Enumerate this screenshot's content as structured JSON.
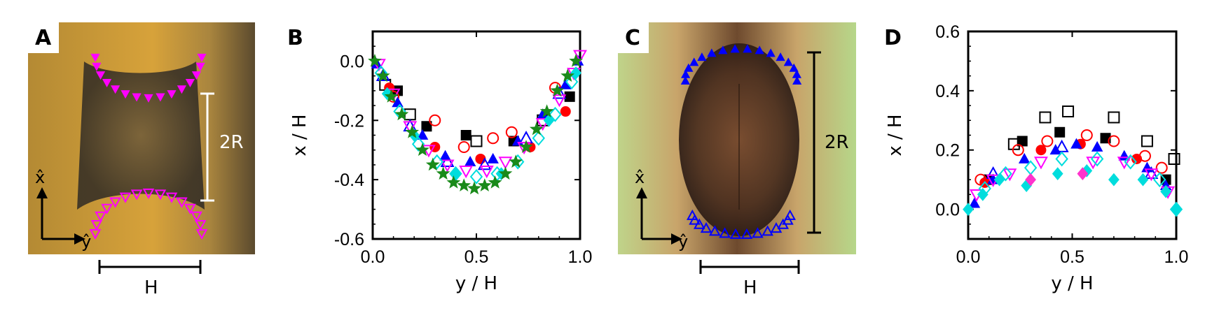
{
  "colors": {
    "magenta": "#ff00ff",
    "blue": "#0000ff",
    "black": "#000000",
    "red": "#ff0000",
    "cyan": "#00dddd",
    "green": "#1a8a1a",
    "pink": "#ff33cc"
  },
  "panel_a": {
    "label": "A",
    "radius_label": "2R",
    "width_label": "H",
    "axis_x_label": "x̂",
    "axis_y_label": "ŷ"
  },
  "panel_c": {
    "label": "C",
    "radius_label": "2R",
    "width_label": "H",
    "axis_x_label": "x̂",
    "axis_y_label": "ŷ"
  },
  "chart_data": [
    {
      "panel": "B",
      "type": "scatter",
      "xlabel": "y / H",
      "ylabel": "x / H",
      "xlim": [
        0,
        1
      ],
      "ylim": [
        -0.6,
        0.1
      ],
      "xticks": [
        "0.0",
        "0.5",
        "1.0"
      ],
      "yticks": [
        "0.0",
        "-0.2",
        "-0.4",
        "-0.6"
      ],
      "series": [
        {
          "marker": "square",
          "fill": "filled",
          "color": "black",
          "x": [
            0.12,
            0.26,
            0.45,
            0.68,
            0.95
          ],
          "y": [
            -0.1,
            -0.22,
            -0.25,
            -0.27,
            -0.12
          ]
        },
        {
          "marker": "square",
          "fill": "open",
          "color": "black",
          "x": [
            0.06,
            0.18,
            0.5,
            0.82
          ],
          "y": [
            -0.08,
            -0.18,
            -0.27,
            -0.2
          ]
        },
        {
          "marker": "circle",
          "fill": "open",
          "color": "red",
          "x": [
            0.1,
            0.3,
            0.44,
            0.58,
            0.67,
            0.88
          ],
          "y": [
            -0.12,
            -0.2,
            -0.29,
            -0.26,
            -0.24,
            -0.09
          ]
        },
        {
          "marker": "circle",
          "fill": "filled",
          "color": "red",
          "x": [
            0.08,
            0.3,
            0.52,
            0.76,
            0.93
          ],
          "y": [
            -0.09,
            -0.29,
            -0.33,
            -0.29,
            -0.17
          ]
        },
        {
          "marker": "triangle-up",
          "fill": "filled",
          "color": "blue",
          "x": [
            0.02,
            0.12,
            0.24,
            0.35,
            0.47,
            0.58,
            0.7,
            0.82,
            0.93,
            0.99
          ],
          "y": [
            -0.01,
            -0.14,
            -0.25,
            -0.32,
            -0.34,
            -0.33,
            -0.27,
            -0.18,
            -0.08,
            0.0
          ]
        },
        {
          "marker": "triangle-up",
          "fill": "open",
          "color": "blue",
          "x": [
            0.05,
            0.18,
            0.36,
            0.54,
            0.74,
            0.9
          ],
          "y": [
            -0.05,
            -0.22,
            -0.34,
            -0.35,
            -0.26,
            -0.11
          ]
        },
        {
          "marker": "triangle-down",
          "fill": "open",
          "color": "magenta",
          "x": [
            0.03,
            0.1,
            0.18,
            0.27,
            0.36,
            0.45,
            0.55,
            0.64,
            0.73,
            0.82,
            0.9,
            0.97,
            1.0
          ],
          "y": [
            -0.01,
            -0.11,
            -0.22,
            -0.3,
            -0.35,
            -0.37,
            -0.37,
            -0.34,
            -0.29,
            -0.21,
            -0.13,
            -0.04,
            0.02
          ]
        },
        {
          "marker": "diamond",
          "fill": "open",
          "color": "cyan",
          "x": [
            0.04,
            0.13,
            0.22,
            0.31,
            0.4,
            0.5,
            0.6,
            0.7,
            0.8,
            0.88,
            0.96
          ],
          "y": [
            -0.04,
            -0.17,
            -0.28,
            -0.34,
            -0.38,
            -0.39,
            -0.38,
            -0.34,
            -0.26,
            -0.18,
            -0.07
          ]
        },
        {
          "marker": "diamond",
          "fill": "filled",
          "color": "cyan",
          "x": [
            0.07,
            0.2,
            0.4,
            0.62,
            0.85,
            0.98
          ],
          "y": [
            -0.11,
            -0.25,
            -0.38,
            -0.38,
            -0.2,
            -0.04
          ]
        },
        {
          "marker": "star",
          "fill": "filled",
          "color": "green",
          "x": [
            0.01,
            0.05,
            0.09,
            0.14,
            0.19,
            0.24,
            0.29,
            0.34,
            0.39,
            0.44,
            0.49,
            0.54,
            0.59,
            0.64,
            0.69,
            0.74,
            0.79,
            0.84,
            0.89,
            0.94,
            0.98
          ],
          "y": [
            0.0,
            -0.05,
            -0.12,
            -0.18,
            -0.24,
            -0.3,
            -0.35,
            -0.38,
            -0.41,
            -0.42,
            -0.43,
            -0.42,
            -0.41,
            -0.38,
            -0.34,
            -0.29,
            -0.23,
            -0.17,
            -0.1,
            -0.05,
            0.0
          ]
        }
      ]
    },
    {
      "panel": "D",
      "type": "scatter",
      "xlabel": "y / H",
      "ylabel": "x / H",
      "xlim": [
        0,
        1
      ],
      "ylim": [
        -0.1,
        0.6
      ],
      "xticks": [
        "0.0",
        "0.5",
        "1.0"
      ],
      "yticks": [
        "0.0",
        "0.2",
        "0.4",
        "0.6"
      ],
      "series": [
        {
          "marker": "square",
          "fill": "open",
          "color": "black",
          "x": [
            0.22,
            0.37,
            0.48,
            0.7,
            0.86,
            0.99
          ],
          "y": [
            0.22,
            0.31,
            0.33,
            0.31,
            0.23,
            0.17
          ]
        },
        {
          "marker": "square",
          "fill": "filled",
          "color": "black",
          "x": [
            0.1,
            0.26,
            0.44,
            0.66,
            0.95
          ],
          "y": [
            0.1,
            0.23,
            0.26,
            0.24,
            0.1
          ]
        },
        {
          "marker": "circle",
          "fill": "open",
          "color": "red",
          "x": [
            0.06,
            0.24,
            0.38,
            0.57,
            0.7,
            0.85,
            0.93
          ],
          "y": [
            0.1,
            0.2,
            0.23,
            0.25,
            0.23,
            0.18,
            0.14
          ]
        },
        {
          "marker": "circle",
          "fill": "filled",
          "color": "red",
          "x": [
            0.08,
            0.35,
            0.54,
            0.81
          ],
          "y": [
            0.09,
            0.2,
            0.22,
            0.17
          ]
        },
        {
          "marker": "triangle-up",
          "fill": "filled",
          "color": "blue",
          "x": [
            0.03,
            0.12,
            0.27,
            0.42,
            0.52,
            0.62,
            0.75,
            0.86,
            0.95
          ],
          "y": [
            0.02,
            0.1,
            0.17,
            0.2,
            0.22,
            0.21,
            0.18,
            0.14,
            0.08
          ]
        },
        {
          "marker": "triangle-up",
          "fill": "open",
          "color": "blue",
          "x": [
            0.12,
            0.45,
            0.88
          ],
          "y": [
            0.12,
            0.21,
            0.12
          ]
        },
        {
          "marker": "triangle-down",
          "fill": "open",
          "color": "magenta",
          "x": [
            0.04,
            0.12,
            0.2,
            0.35,
            0.6,
            0.75,
            0.88,
            0.96
          ],
          "y": [
            0.05,
            0.1,
            0.12,
            0.16,
            0.16,
            0.16,
            0.12,
            0.06
          ]
        },
        {
          "marker": "diamond",
          "fill": "open",
          "color": "cyan",
          "x": [
            0.08,
            0.18,
            0.3,
            0.45,
            0.62,
            0.78,
            0.92,
            1.0
          ],
          "y": [
            0.07,
            0.12,
            0.14,
            0.17,
            0.17,
            0.16,
            0.1,
            0.0
          ]
        },
        {
          "marker": "diamond",
          "fill": "filled",
          "color": "cyan",
          "x": [
            0.0,
            0.07,
            0.15,
            0.28,
            0.43,
            0.57,
            0.7,
            0.84,
            0.95,
            1.0
          ],
          "y": [
            0.0,
            0.05,
            0.1,
            0.08,
            0.12,
            0.13,
            0.1,
            0.1,
            0.06,
            0.0
          ]
        },
        {
          "marker": "diamond",
          "fill": "filled",
          "color": "pink",
          "x": [
            0.3,
            0.55
          ],
          "y": [
            0.1,
            0.12
          ]
        }
      ]
    }
  ]
}
